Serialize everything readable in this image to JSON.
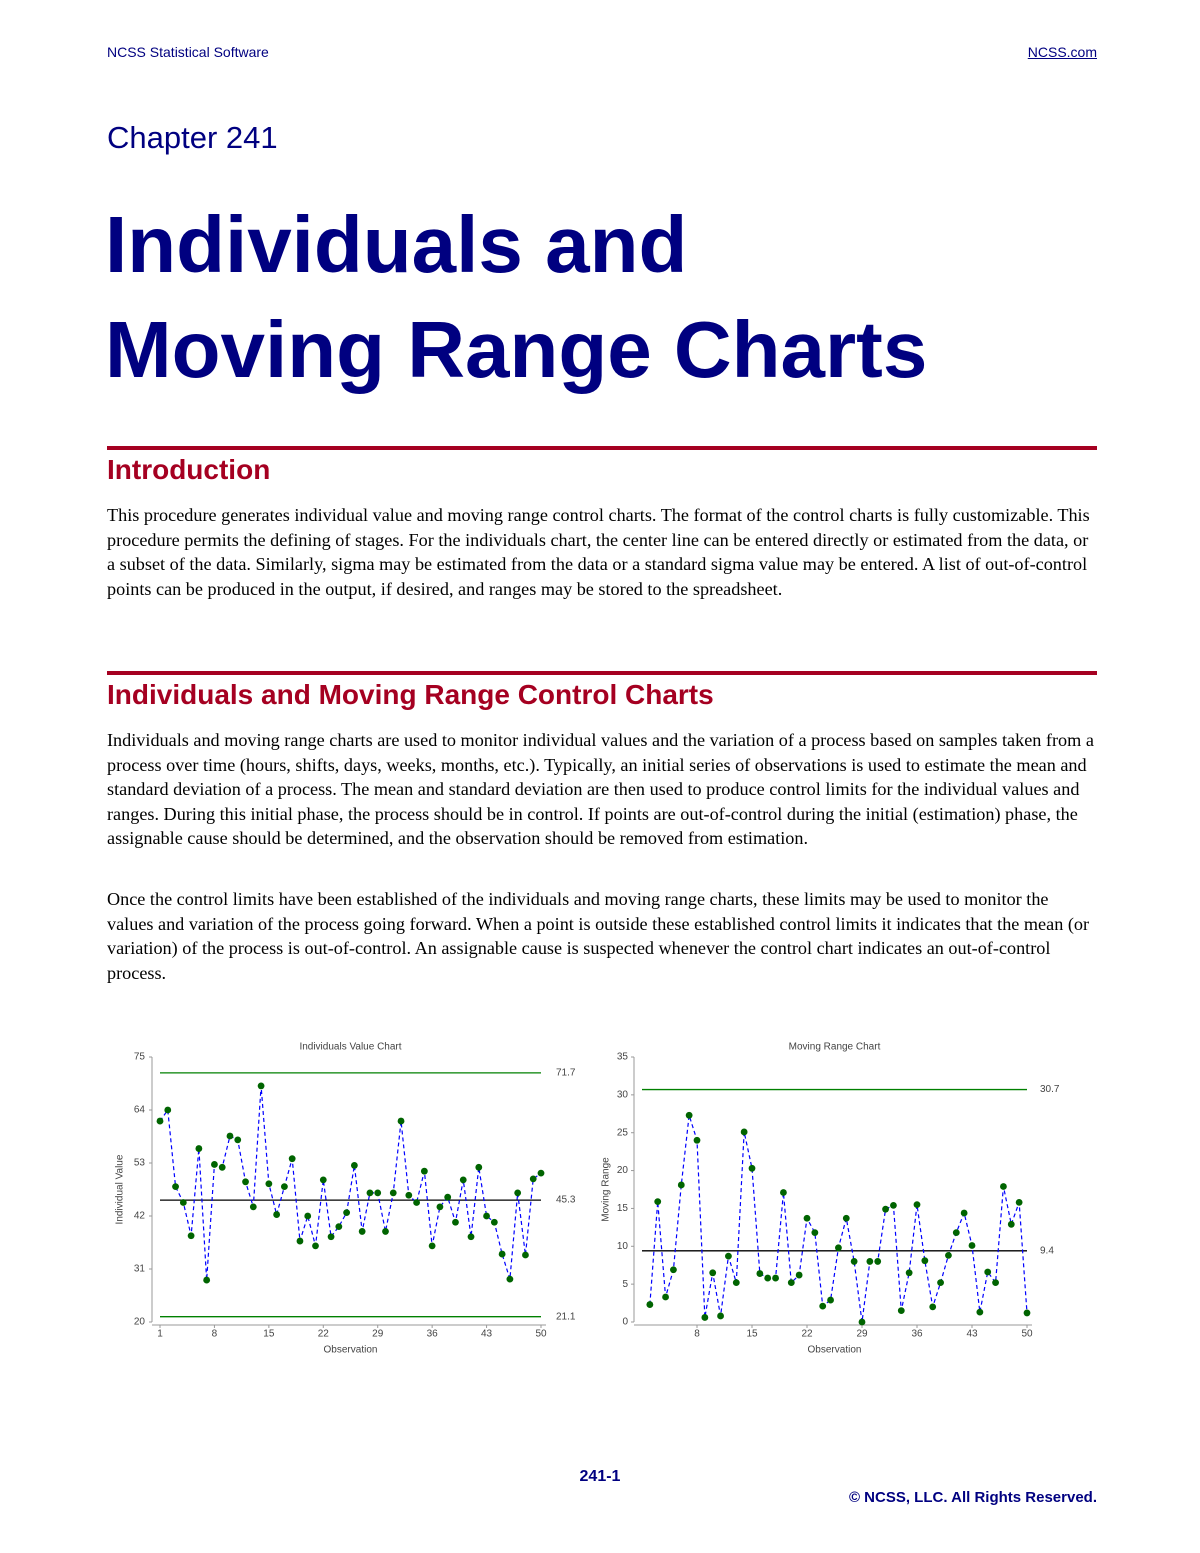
{
  "header": {
    "left": "NCSS Statistical Software",
    "right": "NCSS.com"
  },
  "chapter": "Chapter 241",
  "title": [
    "Individuals and",
    "Moving Range Charts"
  ],
  "sections": [
    {
      "heading": "Introduction",
      "paragraphs": [
        "This procedure generates individual value and moving range control charts. The format of the control charts is fully customizable. This procedure permits the defining of stages. For the individuals chart, the center line can be entered directly or estimated from the data, or a subset of the data. Similarly, sigma may be estimated from the data or a standard sigma value may be entered. A list of out-of-control points can be produced in the output, if desired, and ranges may be stored to the spreadsheet."
      ]
    },
    {
      "heading": "Individuals and Moving Range Control Charts",
      "paragraphs": [
        "Individuals and moving range charts are used to monitor individual values and the variation of a process based on samples taken from a process over time (hours, shifts, days, weeks, months, etc.). Typically, an initial series of observations is used to estimate the mean and standard deviation of a process. The mean and standard deviation are then used to produce control limits for the individual values and ranges. During this initial phase, the process should be in control. If points are out-of-control during the initial (estimation) phase, the assignable cause should be determined, and the observation should be removed from estimation.",
        "Once the control limits have been established of the individuals and moving range charts, these limits may be used to monitor the values and variation of the process going forward. When a point is outside these established control limits it indicates that the mean (or variation) of the process is out-of-control. An assignable cause is suspected whenever the control chart indicates an out-of-control process."
      ]
    }
  ],
  "chart_data": [
    {
      "type": "line",
      "title": "Individuals Value Chart",
      "x_label": "Observation",
      "y_label": "Individual Value",
      "x": [
        1,
        2,
        3,
        4,
        5,
        6,
        7,
        8,
        9,
        10,
        11,
        12,
        13,
        14,
        15,
        16,
        17,
        18,
        19,
        20,
        21,
        22,
        23,
        24,
        25,
        26,
        27,
        28,
        29,
        30,
        31,
        32,
        33,
        34,
        35,
        36,
        37,
        38,
        39,
        40,
        41,
        42,
        43,
        44,
        45,
        46,
        47,
        48,
        49,
        50
      ],
      "series": [
        {
          "color": "#0000ff",
          "marker_color": "#006400",
          "values": [
            61.7,
            64.0,
            48.1,
            44.8,
            37.9,
            56.0,
            28.7,
            52.7,
            52.1,
            58.6,
            57.8,
            49.1,
            43.9,
            69.0,
            48.7,
            42.3,
            48.1,
            53.9,
            36.8,
            42.0,
            35.8,
            49.5,
            37.7,
            39.8,
            42.7,
            52.5,
            38.8,
            46.8,
            46.8,
            38.8,
            46.8,
            61.7,
            46.3,
            44.8,
            51.3,
            35.8,
            43.9,
            45.9,
            40.7,
            49.5,
            37.7,
            52.1,
            42.0,
            40.7,
            34.1,
            28.9,
            46.8,
            33.9,
            49.7,
            50.9
          ]
        }
      ],
      "reference_lines": [
        {
          "value": 71.7,
          "color": "#008000"
        },
        {
          "value": 45.3,
          "color": "#000000"
        },
        {
          "value": 21.1,
          "color": "#008000"
        }
      ],
      "xlim": [
        1,
        50
      ],
      "xticks": [
        1,
        8,
        15,
        22,
        29,
        36,
        43,
        50
      ],
      "ylim": [
        20,
        75
      ],
      "yticks": [
        20,
        31,
        42,
        53,
        64,
        75
      ]
    },
    {
      "type": "line",
      "title": "Moving Range Chart",
      "x_label": "Observation",
      "y_label": "Moving Range",
      "x": [
        1,
        2,
        3,
        4,
        5,
        6,
        7,
        8,
        9,
        10,
        11,
        12,
        13,
        14,
        15,
        16,
        17,
        18,
        19,
        20,
        21,
        22,
        23,
        24,
        25,
        26,
        27,
        28,
        29,
        30,
        31,
        32,
        33,
        34,
        35,
        36,
        37,
        38,
        39,
        40,
        41,
        42,
        43,
        44,
        45,
        46,
        47,
        48,
        49,
        50
      ],
      "series": [
        {
          "color": "#0000ff",
          "marker_color": "#006400",
          "values": [
            null,
            2.3,
            15.9,
            3.3,
            6.9,
            18.1,
            27.3,
            24.0,
            0.6,
            6.5,
            0.8,
            8.7,
            5.2,
            25.1,
            20.3,
            6.4,
            5.8,
            5.8,
            17.1,
            5.2,
            6.2,
            13.7,
            11.8,
            2.1,
            2.9,
            9.8,
            13.7,
            8.0,
            0.0,
            8.0,
            8.0,
            14.9,
            15.4,
            1.5,
            6.5,
            15.5,
            8.1,
            2.0,
            5.2,
            8.8,
            11.8,
            14.4,
            10.1,
            1.3,
            6.6,
            5.2,
            17.9,
            12.9,
            15.8,
            1.2
          ]
        }
      ],
      "reference_lines": [
        {
          "value": 30.7,
          "color": "#008000"
        },
        {
          "value": 9.4,
          "color": "#000000"
        }
      ],
      "xlim": [
        1,
        50
      ],
      "xticks": [
        8,
        15,
        22,
        29,
        36,
        43,
        50
      ],
      "ylim": [
        0,
        35
      ],
      "yticks": [
        0,
        5,
        10,
        15,
        20,
        25,
        30,
        35
      ]
    }
  ],
  "footer": {
    "page": "241-1",
    "copyright": "© NCSS, LLC. All Rights Reserved."
  }
}
